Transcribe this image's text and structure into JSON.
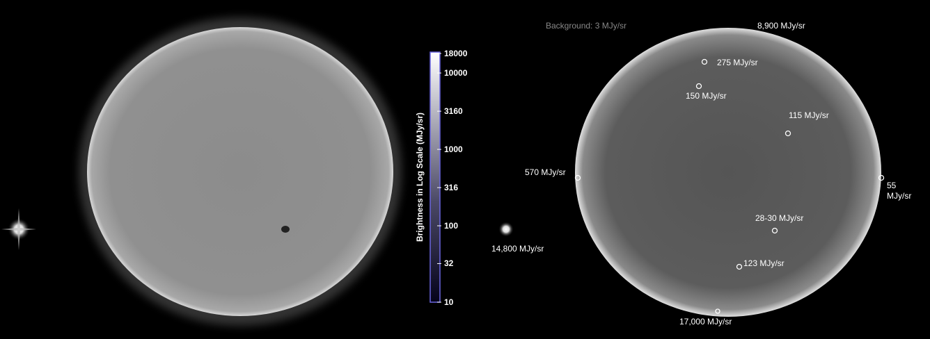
{
  "background_label": "Background: 3 MJy/sr",
  "colorbar": {
    "title": "Brightness in Log Scale (MJy/sr)",
    "scale": "log",
    "ticks": [
      18000,
      10000,
      3160,
      1000,
      316,
      100,
      32,
      10
    ]
  },
  "annotations": [
    "8,900 MJy/sr",
    "275 MJy/sr",
    "150 MJy/sr",
    "115 MJy/sr",
    "570 MJy/sr",
    "55 MJy/sr",
    "28-30 MJy/sr",
    "14,800 MJy/sr",
    "123 MJy/sr",
    "17,000 MJy/sr"
  ]
}
